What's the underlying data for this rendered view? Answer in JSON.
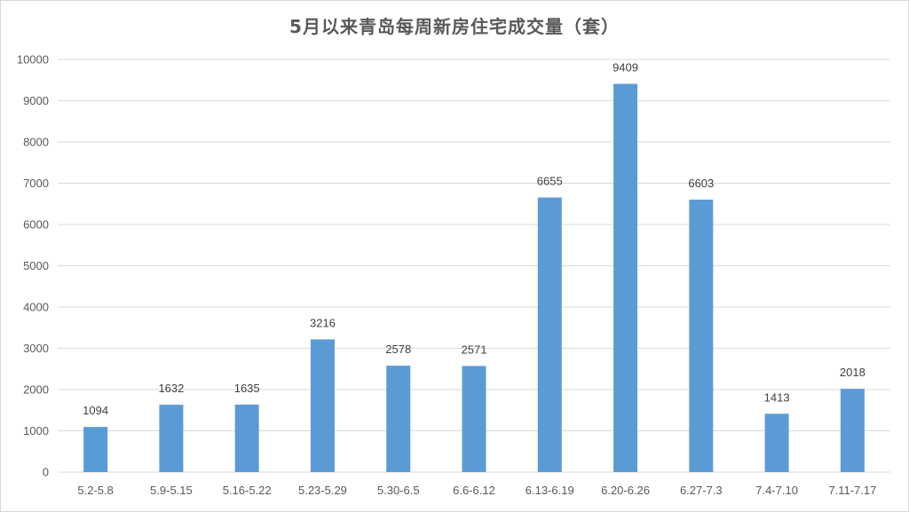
{
  "chart_data": {
    "type": "bar",
    "title": "5月以来青岛每周新房住宅成交量（套）",
    "categories": [
      "5.2-5.8",
      "5.9-5.15",
      "5.16-5.22",
      "5.23-5.29",
      "5.30-6.5",
      "6.6-6.12",
      "6.13-6.19",
      "6.20-6.26",
      "6.27-7.3",
      "7.4-7.10",
      "7.11-7.17"
    ],
    "values": [
      1094,
      1632,
      1635,
      3216,
      2578,
      2571,
      6655,
      9409,
      6603,
      1413,
      2018
    ],
    "ylim": [
      0,
      10000
    ],
    "yticks": [
      0,
      1000,
      2000,
      3000,
      4000,
      5000,
      6000,
      7000,
      8000,
      9000,
      10000
    ],
    "grid": true,
    "data_labels": true,
    "bar_color": "#5b9bd5",
    "grid_color": "#d9d9d9"
  }
}
